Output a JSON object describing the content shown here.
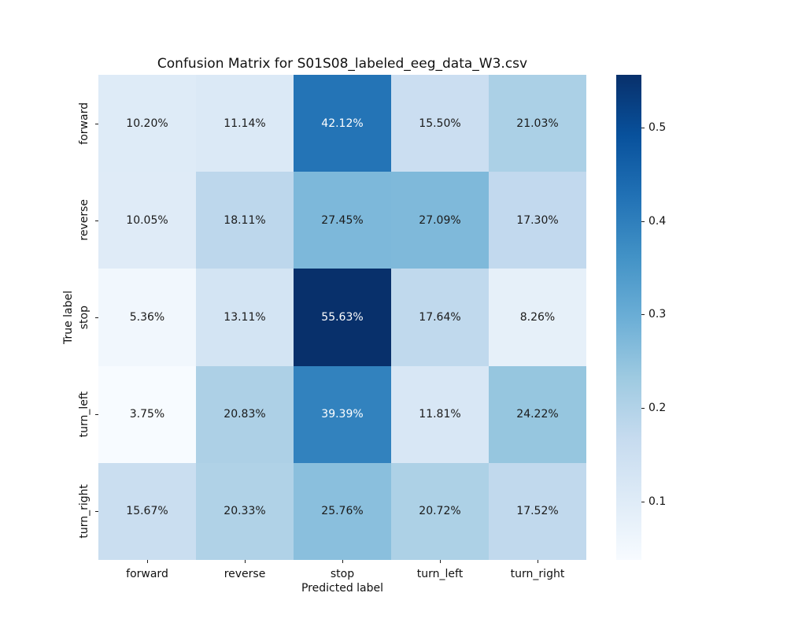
{
  "figure": {
    "background": "#ffffff"
  },
  "chart_data": {
    "type": "heatmap",
    "title": "Confusion Matrix for S01S08_labeled_eeg_data_W3.csv",
    "xlabel": "Predicted label",
    "ylabel": "True label",
    "x_categories": [
      "forward",
      "reverse",
      "stop",
      "turn_left",
      "turn_right"
    ],
    "y_categories": [
      "forward",
      "reverse",
      "stop",
      "turn_left",
      "turn_right"
    ],
    "values_percent": [
      [
        10.2,
        11.14,
        42.12,
        15.5,
        21.03
      ],
      [
        10.05,
        18.11,
        27.45,
        27.09,
        17.3
      ],
      [
        5.36,
        13.11,
        55.63,
        17.64,
        8.26
      ],
      [
        3.75,
        20.83,
        39.39,
        11.81,
        24.22
      ],
      [
        15.67,
        20.33,
        25.76,
        20.72,
        17.52
      ]
    ],
    "annotation_format": "two-decimal percent",
    "colormap": "Blues",
    "vmin": 0.0375,
    "vmax": 0.5563,
    "colorbar_ticks": [
      0.1,
      0.2,
      0.3,
      0.4,
      0.5
    ],
    "legend_position": "right-colorbar",
    "grid": false
  },
  "colors": {
    "blues_anchors": [
      "#f7fbff",
      "#deebf7",
      "#c6dbef",
      "#9ecae1",
      "#6baed6",
      "#4292c6",
      "#2171b5",
      "#08519c",
      "#08306b"
    ],
    "annotation_dark": "#1a1a1a",
    "annotation_light": "#ffffff",
    "tick_color": "#1c1c1c"
  }
}
